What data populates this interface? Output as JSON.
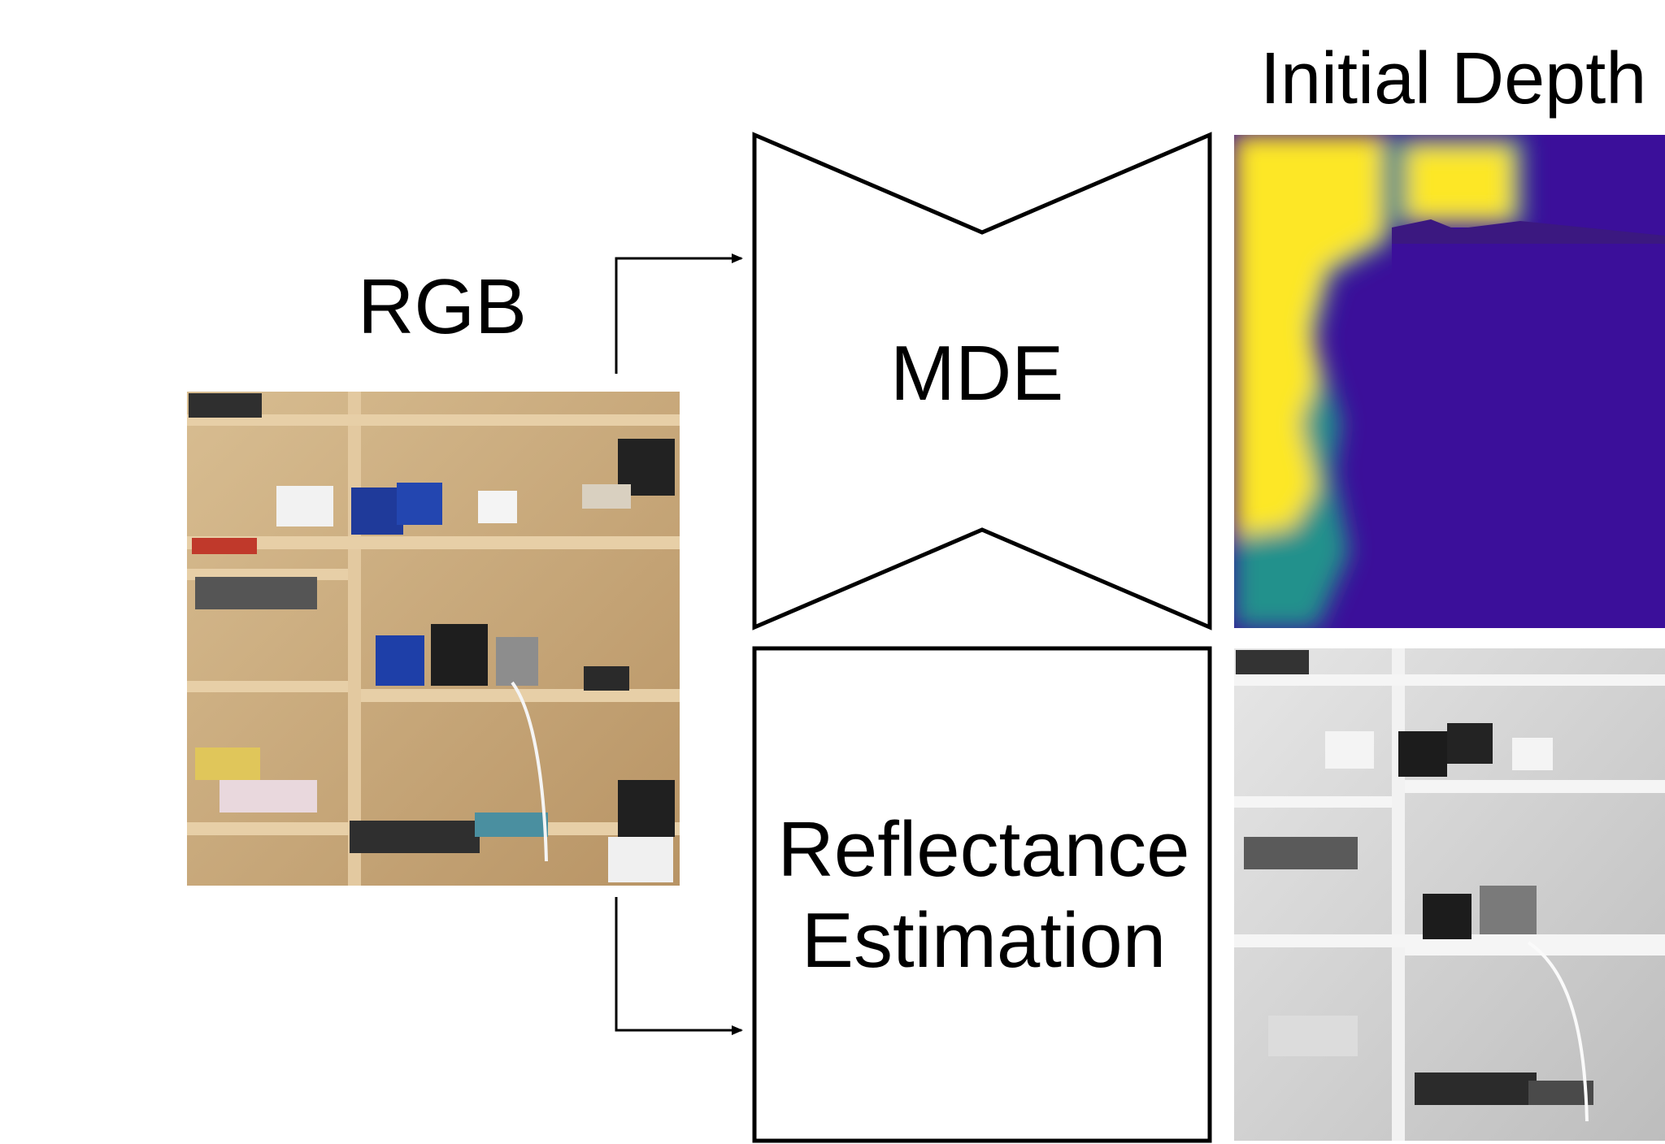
{
  "labels": {
    "rgb": "RGB",
    "mde": "MDE",
    "initial_depth": "Initial Depth",
    "reflectance_line1": "Reflectance",
    "reflectance_line2": "Estimation"
  },
  "colors": {
    "depth_near": "#fde725",
    "depth_mid": "#21918c",
    "depth_far": "#3b0f9a",
    "shelf_wood": "#c9a97a",
    "stroke": "#000000"
  },
  "icons": {
    "rgb_image": "photo-of-shelves",
    "depth_map": "viridis-depth-map",
    "reflectance_map": "grayscale-reflectance-map"
  }
}
